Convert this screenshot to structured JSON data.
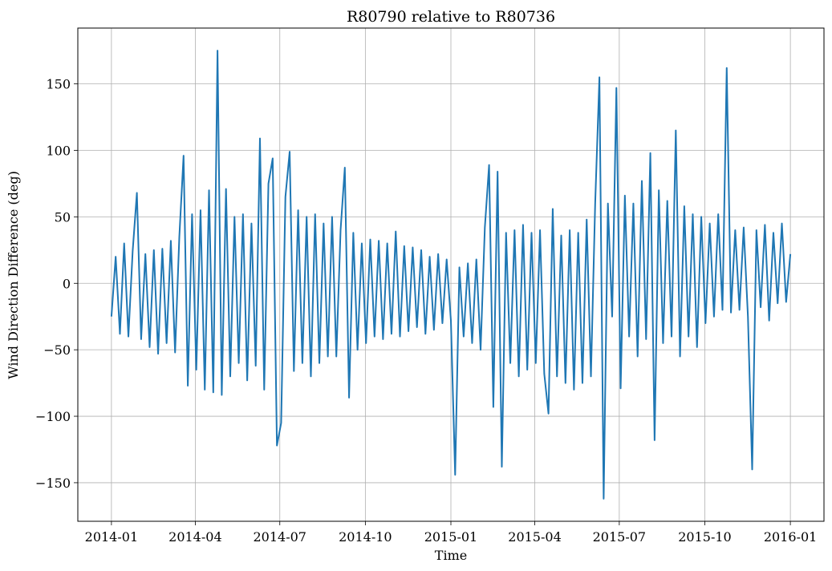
{
  "chart_data": {
    "type": "line",
    "title": "R80790 relative to R80736",
    "xlabel": "Time",
    "ylabel": "Wind Direction Difference (deg)",
    "grid": true,
    "xlim": [
      2013.901,
      2016.099
    ],
    "ylim": [
      -179,
      192
    ],
    "xticks": [
      {
        "value": 2014.0,
        "label": "2014-01"
      },
      {
        "value": 2014.247,
        "label": "2014-04"
      },
      {
        "value": 2014.496,
        "label": "2014-07"
      },
      {
        "value": 2014.748,
        "label": "2014-10"
      },
      {
        "value": 2015.0,
        "label": "2015-01"
      },
      {
        "value": 2015.247,
        "label": "2015-04"
      },
      {
        "value": 2015.496,
        "label": "2015-07"
      },
      {
        "value": 2015.748,
        "label": "2015-10"
      },
      {
        "value": 2016.0,
        "label": "2016-01"
      }
    ],
    "yticks": [
      {
        "value": -150,
        "label": "−150"
      },
      {
        "value": -100,
        "label": "−100"
      },
      {
        "value": -50,
        "label": "−50"
      },
      0,
      50,
      100,
      150
    ],
    "x": [
      2014.0,
      2014.0125,
      2014.025,
      2014.0375,
      2014.05,
      2014.0625,
      2014.075,
      2014.0875,
      2014.1,
      2014.1125,
      2014.125,
      2014.1375,
      2014.15,
      2014.1625,
      2014.175,
      2014.1875,
      2014.2,
      2014.2125,
      2014.225,
      2014.2375,
      2014.25,
      2014.2625,
      2014.275,
      2014.2875,
      2014.3,
      2014.3125,
      2014.325,
      2014.3375,
      2014.35,
      2014.3625,
      2014.375,
      2014.3875,
      2014.4,
      2014.4125,
      2014.425,
      2014.4375,
      2014.45,
      2014.4625,
      2014.475,
      2014.4875,
      2014.5,
      2014.5125,
      2014.525,
      2014.5375,
      2014.55,
      2014.5625,
      2014.575,
      2014.5875,
      2014.6,
      2014.6125,
      2014.625,
      2014.6375,
      2014.65,
      2014.6625,
      2014.675,
      2014.6875,
      2014.7,
      2014.7125,
      2014.725,
      2014.7375,
      2014.75,
      2014.7625,
      2014.775,
      2014.7875,
      2014.8,
      2014.8125,
      2014.825,
      2014.8375,
      2014.85,
      2014.8625,
      2014.875,
      2014.8875,
      2014.9,
      2014.9125,
      2014.925,
      2014.9375,
      2014.95,
      2014.9625,
      2014.975,
      2014.9875,
      2015.0,
      2015.0125,
      2015.025,
      2015.0375,
      2015.05,
      2015.0625,
      2015.075,
      2015.0875,
      2015.1,
      2015.1125,
      2015.125,
      2015.1375,
      2015.15,
      2015.1625,
      2015.175,
      2015.1875,
      2015.2,
      2015.2125,
      2015.225,
      2015.2375,
      2015.25,
      2015.2625,
      2015.275,
      2015.2875,
      2015.3,
      2015.3125,
      2015.325,
      2015.3375,
      2015.35,
      2015.3625,
      2015.375,
      2015.3875,
      2015.4,
      2015.4125,
      2015.425,
      2015.4375,
      2015.45,
      2015.4625,
      2015.475,
      2015.4875,
      2015.5,
      2015.5125,
      2015.525,
      2015.5375,
      2015.55,
      2015.5625,
      2015.575,
      2015.5875,
      2015.6,
      2015.6125,
      2015.625,
      2015.6375,
      2015.65,
      2015.6625,
      2015.675,
      2015.6875,
      2015.7,
      2015.7125,
      2015.725,
      2015.7375,
      2015.75,
      2015.7625,
      2015.775,
      2015.7875,
      2015.8,
      2015.8125,
      2015.825,
      2015.8375,
      2015.85,
      2015.8625,
      2015.875,
      2015.8875,
      2015.9,
      2015.9125,
      2015.925,
      2015.9375,
      2015.95,
      2015.9625,
      2015.975,
      2015.9875,
      2016.0
    ],
    "series": [
      {
        "color": "#1f77b4",
        "values": [
          -25,
          20,
          -38,
          30,
          -40,
          24,
          68,
          -42,
          22,
          -48,
          25,
          -53,
          26,
          -45,
          32,
          -52,
          35,
          96,
          -77,
          52,
          -65,
          55,
          -80,
          70,
          -82,
          175,
          -84,
          71,
          -70,
          50,
          -60,
          52,
          -73,
          45,
          -62,
          109,
          -80,
          75,
          94,
          -122,
          -105,
          65,
          99,
          -66,
          55,
          -60,
          50,
          -70,
          52,
          -60,
          45,
          -55,
          50,
          -55,
          40,
          87,
          -86,
          38,
          -50,
          30,
          -45,
          33,
          -40,
          32,
          -42,
          30,
          -38,
          39,
          -40,
          28,
          -36,
          27,
          -33,
          25,
          -38,
          20,
          -35,
          22,
          -30,
          18,
          -28,
          -144,
          12,
          -40,
          15,
          -45,
          18,
          -50,
          42,
          89,
          -93,
          84,
          -138,
          38,
          -60,
          40,
          -70,
          44,
          -65,
          38,
          -60,
          40,
          -68,
          -98,
          56,
          -70,
          36,
          -75,
          40,
          -80,
          38,
          -75,
          48,
          -70,
          60,
          155,
          -162,
          60,
          -25,
          147,
          -79,
          66,
          -40,
          60,
          -55,
          77,
          -42,
          98,
          -118,
          70,
          -45,
          62,
          -40,
          115,
          -55,
          58,
          -40,
          52,
          -48,
          50,
          -30,
          45,
          -25,
          52,
          -20,
          162,
          -22,
          40,
          -20,
          42,
          -25,
          -140,
          40,
          -18,
          44,
          -28,
          38,
          -15,
          45,
          -14,
          22
        ]
      }
    ]
  }
}
